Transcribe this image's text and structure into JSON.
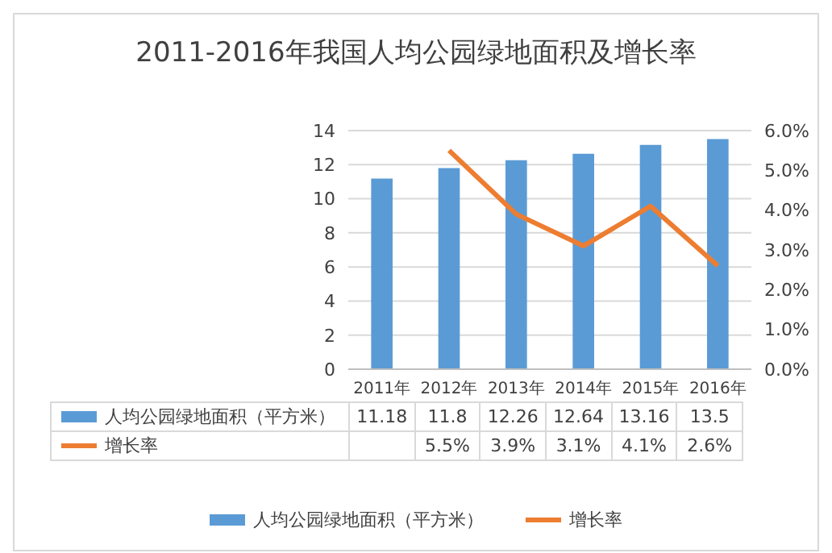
{
  "chart_data": {
    "type": "bar",
    "title": "2011-2016年我国人均公园绿地面积及增长率",
    "categories": [
      "2011年",
      "2012年",
      "2013年",
      "2014年",
      "2015年",
      "2016年"
    ],
    "series": [
      {
        "name": "人均公园绿地面积（平方米）",
        "color": "#5b9bd5",
        "values": [
          11.18,
          11.8,
          12.26,
          12.64,
          13.16,
          13.5
        ],
        "value_labels": [
          "11.18",
          "11.8",
          "12.26",
          "12.64",
          "13.16",
          "13.5"
        ]
      },
      {
        "name": "增长率",
        "type": "line",
        "axis": "y2",
        "color": "#ed7d31",
        "values": [
          null,
          5.5,
          3.9,
          3.1,
          4.1,
          2.6
        ],
        "value_labels": [
          null,
          "5.5%",
          "3.9%",
          "3.1%",
          "4.1%",
          "2.6%"
        ]
      }
    ],
    "ylim": [
      0,
      14
    ],
    "yticks": [
      0,
      2,
      4,
      6,
      8,
      10,
      12,
      14
    ],
    "y2lim": [
      0,
      6
    ],
    "y2ticks": [
      {
        "value": 0,
        "label": "0.0%"
      },
      {
        "value": 1,
        "label": "1.0%"
      },
      {
        "value": 2,
        "label": "2.0%"
      },
      {
        "value": 3,
        "label": "3.0%"
      },
      {
        "value": 4,
        "label": "4.0%"
      },
      {
        "value": 5,
        "label": "5.0%"
      },
      {
        "value": 6,
        "label": "6.0%"
      }
    ],
    "grid": "y",
    "legend": "bottom",
    "marker": "none",
    "line_style": "solid"
  }
}
